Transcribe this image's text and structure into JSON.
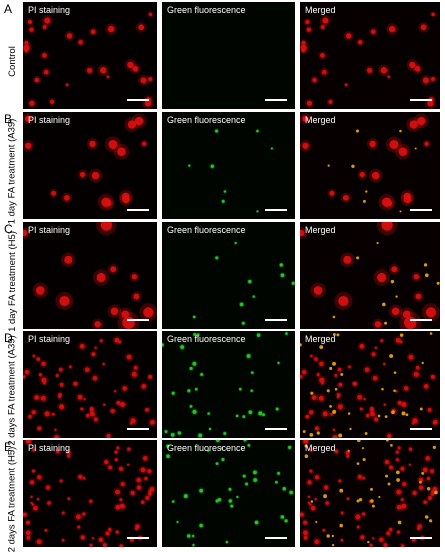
{
  "figure": {
    "rows": [
      {
        "letter": "A",
        "label": "Control",
        "panels": [
          "PI  staining",
          "Green fluorescence",
          "Merged"
        ],
        "red_density": 28,
        "green_density": 0,
        "red_size": 2.2,
        "green_size": 1.5,
        "seed": 3
      },
      {
        "letter": "B",
        "label": "1 day FA treatment (A39)",
        "panels": [
          "PI  staining",
          "Green fluorescence",
          "Merged"
        ],
        "red_density": 16,
        "green_density": 8,
        "red_size": 3.2,
        "green_size": 1.4,
        "seed": 11
      },
      {
        "letter": "C",
        "label": "1 day FA treatment (H5)",
        "panels": [
          "PI  staining",
          "Green fluorescence",
          "Merged"
        ],
        "red_density": 14,
        "green_density": 10,
        "red_size": 4.2,
        "green_size": 1.5,
        "seed": 23
      },
      {
        "letter": "D",
        "label": "2 days FA treatment (A39)",
        "panels": [
          "PI  staining",
          "Green fluorescence",
          "Merged"
        ],
        "red_density": 60,
        "green_density": 32,
        "red_size": 1.8,
        "green_size": 1.6,
        "seed": 37
      },
      {
        "letter": "E",
        "label": "2 days FA treatment (H5)",
        "panels": [
          "PI  staining",
          "Green fluorescence",
          "Merged"
        ],
        "red_density": 70,
        "green_density": 36,
        "red_size": 1.7,
        "green_size": 1.5,
        "seed": 51
      }
    ],
    "colors": {
      "red": "#e01010",
      "green": "#20d020",
      "merged": "#e0a010",
      "background": "#050000"
    }
  }
}
